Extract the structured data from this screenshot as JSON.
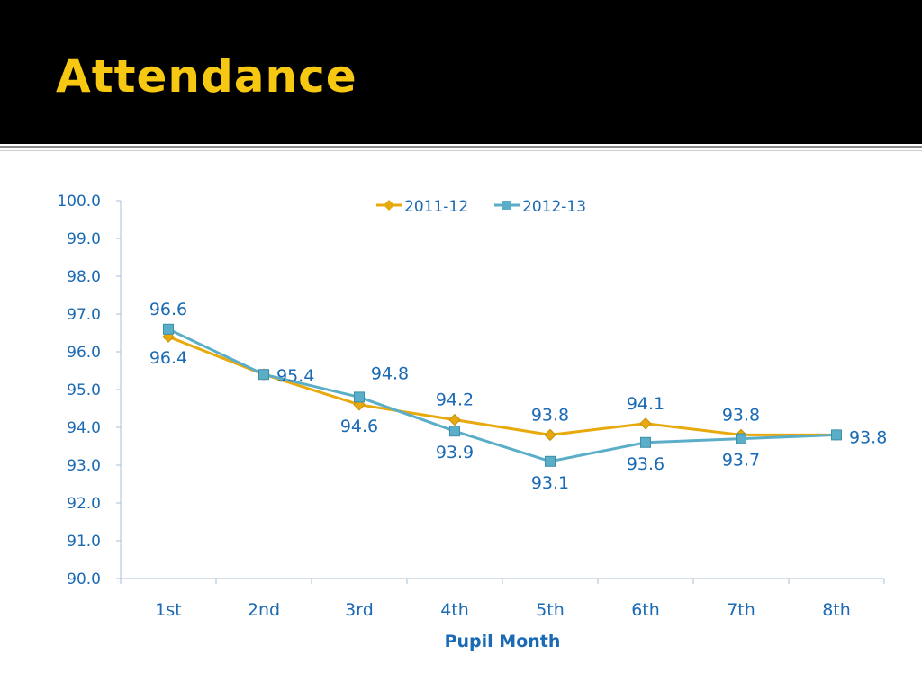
{
  "slide": {
    "title": "Attendance"
  },
  "colors": {
    "header_bg": "#000000",
    "title": "#f6c812",
    "series_2011": "#e8a90c",
    "series_2012": "#5aaec8",
    "text": "#1a6ab4"
  },
  "chart_data": {
    "type": "line",
    "title": "",
    "xlabel": "Pupil Month",
    "ylabel": "",
    "categories": [
      "1st",
      "2nd",
      "3rd",
      "4th",
      "5th",
      "6th",
      "7th",
      "8th"
    ],
    "ylim": [
      90.0,
      100.0
    ],
    "yticks": [
      "90.0",
      "91.0",
      "92.0",
      "93.0",
      "94.0",
      "95.0",
      "96.0",
      "97.0",
      "98.0",
      "99.0",
      "100.0"
    ],
    "legend": "top-center",
    "grid": false,
    "series": [
      {
        "name": "2011-12",
        "marker": "diamond",
        "values": [
          96.4,
          95.4,
          94.6,
          94.2,
          93.8,
          94.1,
          93.8,
          93.8
        ]
      },
      {
        "name": "2012-13",
        "marker": "square",
        "values": [
          96.6,
          95.4,
          94.8,
          93.9,
          93.1,
          93.6,
          93.7,
          93.8
        ]
      }
    ],
    "data_labels": [
      {
        "series": 0,
        "index": 0,
        "text": "96.4"
      },
      {
        "series": 1,
        "index": 0,
        "text": "96.6"
      },
      {
        "series": 1,
        "index": 1,
        "text": "95.4"
      },
      {
        "series": 0,
        "index": 2,
        "text": "94.6"
      },
      {
        "series": 1,
        "index": 2,
        "text": "94.8"
      },
      {
        "series": 0,
        "index": 3,
        "text": "94.2"
      },
      {
        "series": 1,
        "index": 3,
        "text": "93.9"
      },
      {
        "series": 0,
        "index": 4,
        "text": "93.8"
      },
      {
        "series": 1,
        "index": 4,
        "text": "93.1"
      },
      {
        "series": 0,
        "index": 5,
        "text": "94.1"
      },
      {
        "series": 1,
        "index": 5,
        "text": "93.6"
      },
      {
        "series": 0,
        "index": 6,
        "text": "93.8"
      },
      {
        "series": 1,
        "index": 6,
        "text": "93.7"
      },
      {
        "series": 1,
        "index": 7,
        "text": "93.8"
      }
    ]
  }
}
